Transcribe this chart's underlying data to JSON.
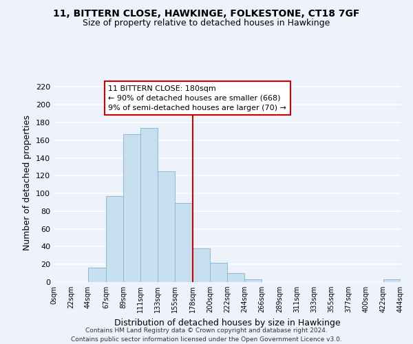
{
  "title1": "11, BITTERN CLOSE, HAWKINGE, FOLKESTONE, CT18 7GF",
  "title2": "Size of property relative to detached houses in Hawkinge",
  "xlabel": "Distribution of detached houses by size in Hawkinge",
  "ylabel": "Number of detached properties",
  "bar_color": "#c8dff0",
  "bar_edge_color": "#8ab8d8",
  "bin_edges": [
    0,
    22,
    44,
    67,
    89,
    111,
    133,
    155,
    178,
    200,
    222,
    244,
    266,
    289,
    311,
    333,
    355,
    377,
    400,
    422,
    444
  ],
  "bar_heights": [
    0,
    0,
    16,
    97,
    167,
    174,
    125,
    89,
    38,
    22,
    10,
    3,
    0,
    0,
    0,
    0,
    0,
    0,
    0,
    3
  ],
  "xtick_labels": [
    "0sqm",
    "22sqm",
    "44sqm",
    "67sqm",
    "89sqm",
    "111sqm",
    "133sqm",
    "155sqm",
    "178sqm",
    "200sqm",
    "222sqm",
    "244sqm",
    "266sqm",
    "289sqm",
    "311sqm",
    "333sqm",
    "355sqm",
    "377sqm",
    "400sqm",
    "422sqm",
    "444sqm"
  ],
  "vline_x": 178,
  "vline_color": "#cc0000",
  "ylim": [
    0,
    225
  ],
  "ytick_values": [
    0,
    20,
    40,
    60,
    80,
    100,
    120,
    140,
    160,
    180,
    200,
    220
  ],
  "annotation_title": "11 BITTERN CLOSE: 180sqm",
  "annotation_line1": "← 90% of detached houses are smaller (668)",
  "annotation_line2": "9% of semi-detached houses are larger (70) →",
  "annotation_box_color": "#ffffff",
  "annotation_border_color": "#cc0000",
  "footnote1": "Contains HM Land Registry data © Crown copyright and database right 2024.",
  "footnote2": "Contains public sector information licensed under the Open Government Licence v3.0.",
  "background_color": "#eef2fb",
  "grid_color": "#ffffff"
}
